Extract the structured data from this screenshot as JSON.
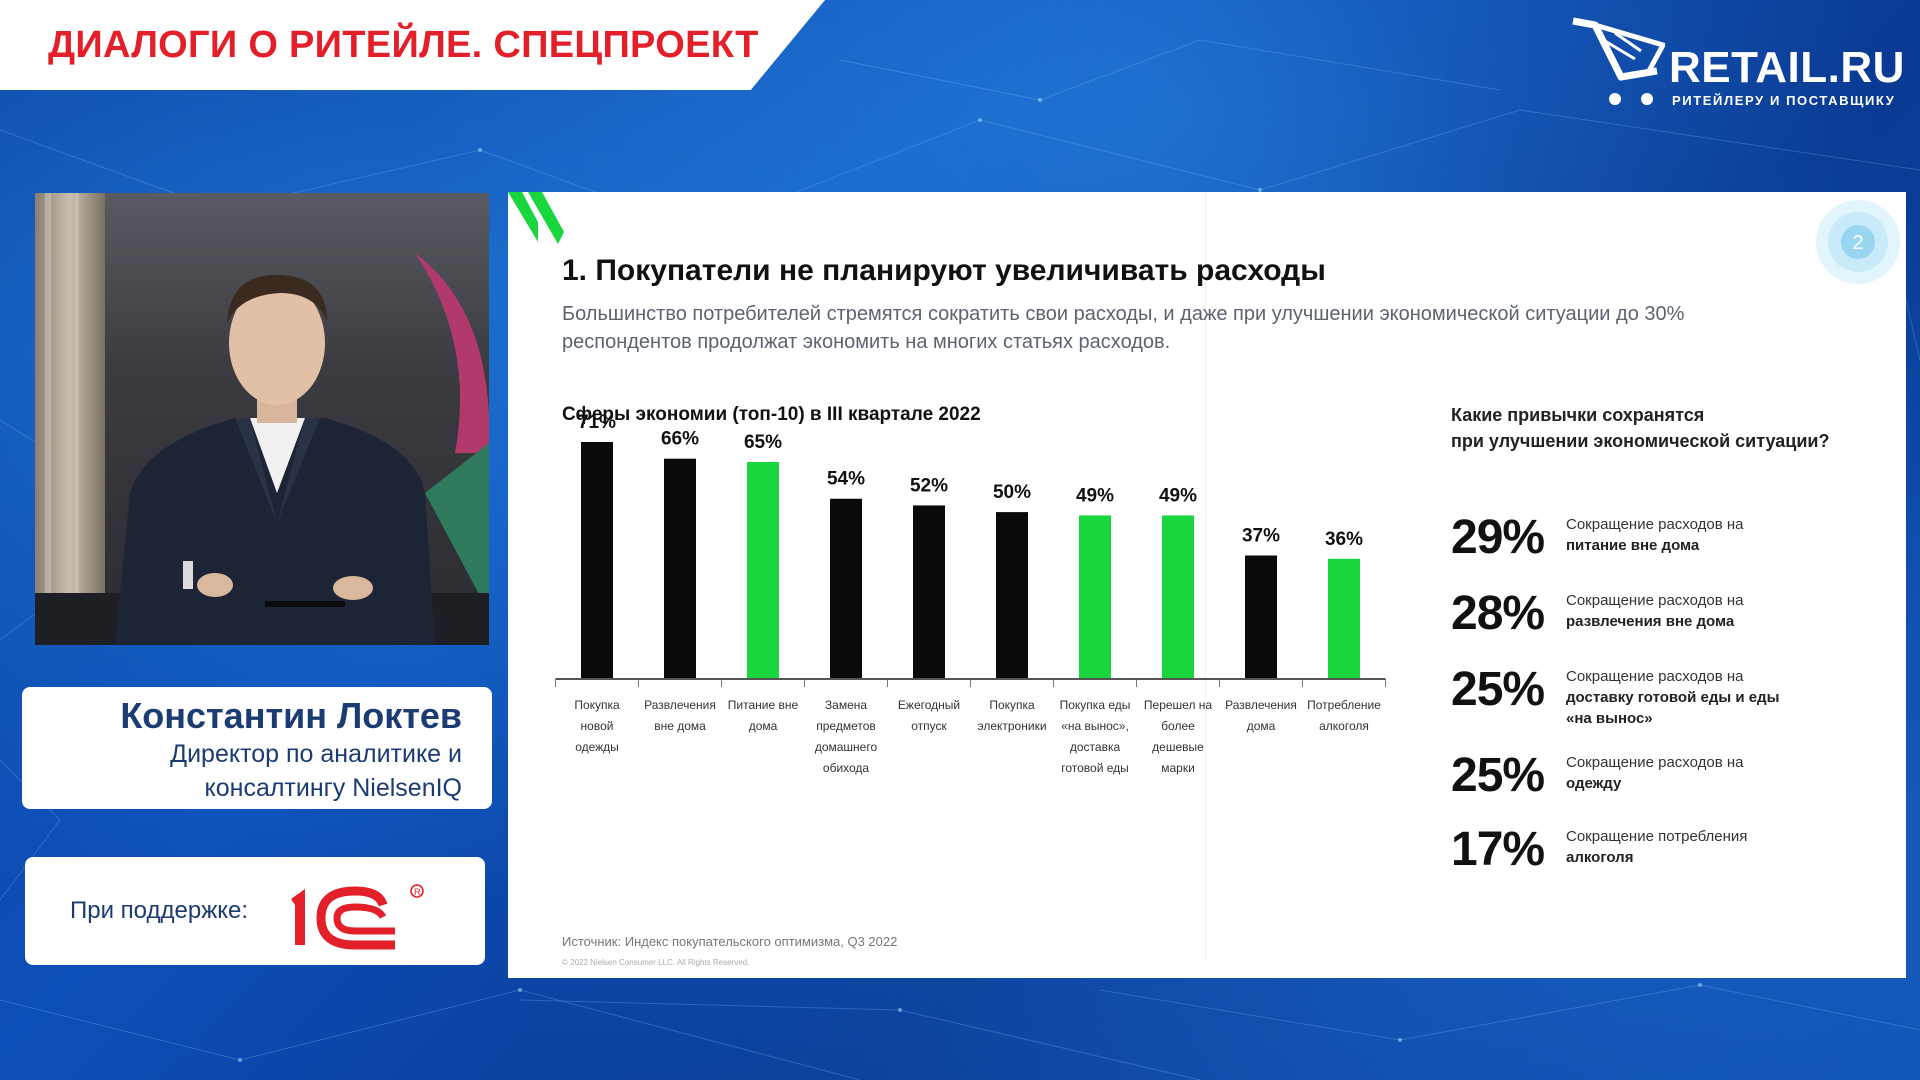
{
  "banner": {
    "title": "ДИАЛОГИ О РИТЕЙЛЕ. СПЕЦПРОЕКТ"
  },
  "logo": {
    "name": "RETAIL.RU",
    "tagline": "РИТЕЙЛЕРУ И ПОСТАВЩИКУ",
    "icon": "cart-icon"
  },
  "speaker": {
    "name": "Константин Локтев",
    "role_line1": "Директор по аналитике и",
    "role_line2": "консалтингу NielsenIQ"
  },
  "support": {
    "label": "При поддержке:",
    "sponsor_logo": "1C-logo"
  },
  "slide": {
    "page_number": "2",
    "title": "1. Покупатели не планируют увеличивать расходы",
    "subtitle": "Большинство потребителей стремятся сократить свои расходы, и даже при улучшении экономической ситуации до 30% респондентов продолжат экономить на многих статьях расходов.",
    "chart_title": "Сферы экономии (топ-10) в III квартале 2022",
    "source": "Источник: Индекс покупательского оптимизма, Q3 2022",
    "copyright": "© 2022 Nielsen Consumer LLC. All Rights Reserved.",
    "habits_title_line1": "Какие привычки сохранятся",
    "habits_title_line2": "при улучшении экономической ситуации?",
    "habits": [
      {
        "pct": "29%",
        "line1": "Сокращение расходов на",
        "line2": "питание вне дома"
      },
      {
        "pct": "28%",
        "line1": "Сокращение расходов на",
        "line2": "развлечения вне дома"
      },
      {
        "pct": "25%",
        "line1": "Сокращение расходов на",
        "line2": "доставку готовой еды и еды «на вынос»"
      },
      {
        "pct": "25%",
        "line1": "Сокращение расходов на",
        "line2": "одежду"
      },
      {
        "pct": "17%",
        "line1": "Сокращение потребления",
        "line2": "алкоголя"
      }
    ]
  },
  "colors": {
    "accent_red": "#e3202a",
    "bar_black": "#0a0a0a",
    "bar_green": "#19d63f",
    "navy": "#1b3b73"
  },
  "chart_data": {
    "type": "bar",
    "title": "Сферы экономии (топ-10) в III квартале 2022",
    "categories": [
      "Покупка новой одежды",
      "Развлечения вне дома",
      "Питание вне дома",
      "Замена предметов домашнего обихода",
      "Ежегодный отпуск",
      "Покупка электроники",
      "Покупка еды «на вынос», доставка готовой еды",
      "Перешел на более дешевые марки",
      "Развлечения дома",
      "Потребление алкоголя"
    ],
    "category_lines": [
      [
        "Покупка",
        "новой",
        "одежды"
      ],
      [
        "Развлечения",
        "вне дома"
      ],
      [
        "Питание вне",
        "дома"
      ],
      [
        "Замена",
        "предметов",
        "домашнего",
        "обихода"
      ],
      [
        "Ежегодный",
        "отпуск"
      ],
      [
        "Покупка",
        "электроники"
      ],
      [
        "Покупка еды",
        "«на вынос»,",
        "доставка",
        "готовой еды"
      ],
      [
        "Перешел на",
        "более",
        "дешевые",
        "марки"
      ],
      [
        "Развлечения",
        "дома"
      ],
      [
        "Потребление",
        "алкоголя"
      ]
    ],
    "values": [
      71,
      66,
      65,
      54,
      52,
      50,
      49,
      49,
      37,
      36
    ],
    "value_labels": [
      "71%",
      "66%",
      "65%",
      "54%",
      "52%",
      "50%",
      "49%",
      "49%",
      "37%",
      "36%"
    ],
    "highlight": [
      false,
      false,
      true,
      false,
      false,
      false,
      true,
      true,
      false,
      true
    ],
    "ylim": [
      0,
      71
    ]
  }
}
